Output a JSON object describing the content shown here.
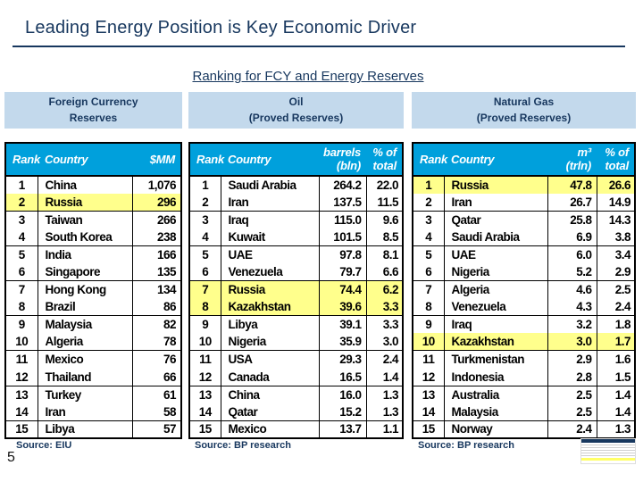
{
  "slide": {
    "title": "Leading Energy Position is Key Economic Driver",
    "subtitle": "Ranking for FCY and Energy Reserves",
    "page_number": "5"
  },
  "colors": {
    "navy": "#17375E",
    "header_cyan": "#00A0DC",
    "caption_blue": "#C3D9EC",
    "highlight_yellow": "#FFFF8C"
  },
  "tables": [
    {
      "caption_line1": "Foreign Currency",
      "caption_line2": "Reserves",
      "headers": {
        "rank": "Rank",
        "country": "Country",
        "value": "$MM"
      },
      "source": "Source: EIU",
      "rows": [
        {
          "cells": [
            "1",
            "China",
            "1,076"
          ],
          "highlight": false
        },
        {
          "cells": [
            "2",
            "Russia",
            "296"
          ],
          "highlight": true
        },
        {
          "cells": [
            "3",
            "Taiwan",
            "266"
          ],
          "highlight": false
        },
        {
          "cells": [
            "4",
            "South Korea",
            "238"
          ],
          "highlight": false
        },
        {
          "cells": [
            "5",
            "India",
            "166"
          ],
          "highlight": false
        },
        {
          "cells": [
            "6",
            "Singapore",
            "135"
          ],
          "highlight": false
        },
        {
          "cells": [
            "7",
            "Hong Kong",
            "134"
          ],
          "highlight": false
        },
        {
          "cells": [
            "8",
            "Brazil",
            "86"
          ],
          "highlight": false
        },
        {
          "cells": [
            "9",
            "Malaysia",
            "82"
          ],
          "highlight": false
        },
        {
          "cells": [
            "10",
            "Algeria",
            "78"
          ],
          "highlight": false
        },
        {
          "cells": [
            "11",
            "Mexico",
            "76"
          ],
          "highlight": false
        },
        {
          "cells": [
            "12",
            "Thailand",
            "66"
          ],
          "highlight": false
        },
        {
          "cells": [
            "13",
            "Turkey",
            "61"
          ],
          "highlight": false
        },
        {
          "cells": [
            "14",
            "Iran",
            "58"
          ],
          "highlight": false
        },
        {
          "cells": [
            "15",
            "Libya",
            "57"
          ],
          "highlight": false
        }
      ]
    },
    {
      "caption_line1": "Oil",
      "caption_line2": "(Proved Reserves)",
      "headers": {
        "rank": "Rank",
        "country": "Country",
        "value_line1": "barrels",
        "value_line2": "(bln)",
        "pct_line1": "% of",
        "pct_line2": "total"
      },
      "source": "Source: BP research",
      "rows": [
        {
          "cells": [
            "1",
            "Saudi Arabia",
            "264.2",
            "22.0"
          ],
          "highlight": false
        },
        {
          "cells": [
            "2",
            "Iran",
            "137.5",
            "11.5"
          ],
          "highlight": false
        },
        {
          "cells": [
            "3",
            "Iraq",
            "115.0",
            "9.6"
          ],
          "highlight": false
        },
        {
          "cells": [
            "4",
            "Kuwait",
            "101.5",
            "8.5"
          ],
          "highlight": false
        },
        {
          "cells": [
            "5",
            "UAE",
            "97.8",
            "8.1"
          ],
          "highlight": false
        },
        {
          "cells": [
            "6",
            "Venezuela",
            "79.7",
            "6.6"
          ],
          "highlight": false
        },
        {
          "cells": [
            "7",
            "Russia",
            "74.4",
            "6.2"
          ],
          "highlight": true
        },
        {
          "cells": [
            "8",
            "Kazakhstan",
            "39.6",
            "3.3"
          ],
          "highlight": true
        },
        {
          "cells": [
            "9",
            "Libya",
            "39.1",
            "3.3"
          ],
          "highlight": false
        },
        {
          "cells": [
            "10",
            "Nigeria",
            "35.9",
            "3.0"
          ],
          "highlight": false
        },
        {
          "cells": [
            "11",
            "USA",
            "29.3",
            "2.4"
          ],
          "highlight": false
        },
        {
          "cells": [
            "12",
            "Canada",
            "16.5",
            "1.4"
          ],
          "highlight": false
        },
        {
          "cells": [
            "13",
            "China",
            "16.0",
            "1.3"
          ],
          "highlight": false
        },
        {
          "cells": [
            "14",
            "Qatar",
            "15.2",
            "1.3"
          ],
          "highlight": false
        },
        {
          "cells": [
            "15",
            "Mexico",
            "13.7",
            "1.1"
          ],
          "highlight": false
        }
      ]
    },
    {
      "caption_line1": "Natural Gas",
      "caption_line2": "(Proved Reserves)",
      "headers": {
        "rank": "Rank",
        "country": "Country",
        "value_line1": "m³",
        "value_line2": "(trln)",
        "pct_line1": "% of",
        "pct_line2": "total"
      },
      "source": "Source: BP research",
      "rows": [
        {
          "cells": [
            "1",
            "Russia",
            "47.8",
            "26.6"
          ],
          "highlight": true
        },
        {
          "cells": [
            "2",
            "Iran",
            "26.7",
            "14.9"
          ],
          "highlight": false
        },
        {
          "cells": [
            "3",
            "Qatar",
            "25.8",
            "14.3"
          ],
          "highlight": false
        },
        {
          "cells": [
            "4",
            "Saudi Arabia",
            "6.9",
            "3.8"
          ],
          "highlight": false
        },
        {
          "cells": [
            "5",
            "UAE",
            "6.0",
            "3.4"
          ],
          "highlight": false
        },
        {
          "cells": [
            "6",
            "Nigeria",
            "5.2",
            "2.9"
          ],
          "highlight": false
        },
        {
          "cells": [
            "7",
            "Algeria",
            "4.6",
            "2.5"
          ],
          "highlight": false
        },
        {
          "cells": [
            "8",
            "Venezuela",
            "4.3",
            "2.4"
          ],
          "highlight": false
        },
        {
          "cells": [
            "9",
            "Iraq",
            "3.2",
            "1.8"
          ],
          "highlight": false
        },
        {
          "cells": [
            "10",
            "Kazakhstan",
            "3.0",
            "1.7"
          ],
          "highlight": true
        },
        {
          "cells": [
            "11",
            "Turkmenistan",
            "2.9",
            "1.6"
          ],
          "highlight": false
        },
        {
          "cells": [
            "12",
            "Indonesia",
            "2.8",
            "1.5"
          ],
          "highlight": false
        },
        {
          "cells": [
            "13",
            "Australia",
            "2.5",
            "1.4"
          ],
          "highlight": false
        },
        {
          "cells": [
            "14",
            "Malaysia",
            "2.5",
            "1.4"
          ],
          "highlight": false
        },
        {
          "cells": [
            "15",
            "Norway",
            "2.4",
            "1.3"
          ],
          "highlight": false
        }
      ]
    }
  ]
}
